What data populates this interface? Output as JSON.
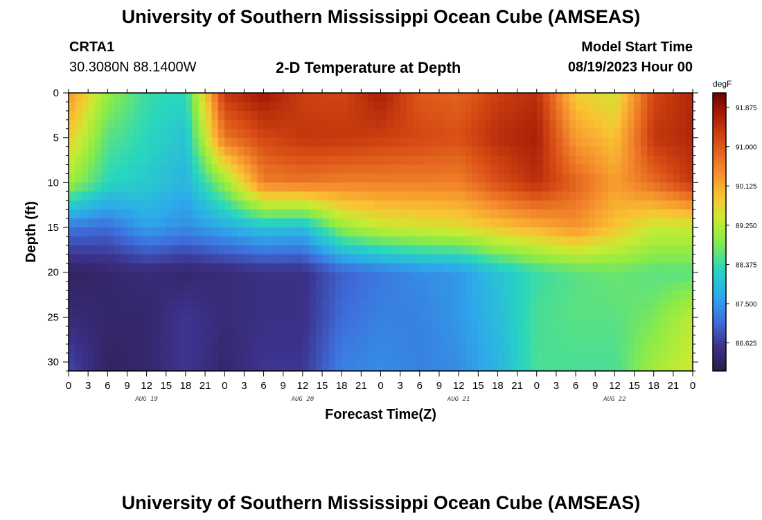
{
  "header": {
    "title": "University of Southern Mississippi Ocean Cube (AMSEAS)",
    "station": "CRTA1",
    "location": "30.3080N  88.1400W",
    "subtitle": "2-D Temperature at Depth",
    "model_label": "Model Start Time",
    "model_time": "08/19/2023 Hour 00"
  },
  "footer": {
    "title": "University of Southern Mississippi Ocean Cube (AMSEAS)"
  },
  "chart_data": {
    "type": "heatmap",
    "title": "2-D Temperature at Depth",
    "xlabel": "Forecast Time(Z)",
    "ylabel": "Depth (ft)",
    "x_unit_hours": [
      0,
      96
    ],
    "xlim": [
      0,
      96
    ],
    "ylim": [
      0,
      31
    ],
    "x_ticks": [
      0,
      3,
      6,
      9,
      12,
      15,
      18,
      21,
      24,
      27,
      30,
      33,
      36,
      39,
      42,
      45,
      48,
      51,
      54,
      57,
      60,
      63,
      66,
      69,
      72,
      75,
      78,
      81,
      84,
      87,
      90,
      93,
      96
    ],
    "x_tick_labels": [
      "0",
      "3",
      "6",
      "9",
      "12",
      "15",
      "18",
      "21",
      "0",
      "3",
      "6",
      "9",
      "12",
      "15",
      "18",
      "21",
      "0",
      "3",
      "6",
      "9",
      "12",
      "15",
      "18",
      "21",
      "0",
      "3",
      "6",
      "9",
      "12",
      "15",
      "18",
      "21",
      "0"
    ],
    "day_labels": [
      {
        "hour": 12,
        "text": "AUG 19"
      },
      {
        "hour": 36,
        "text": "AUG 20"
      },
      {
        "hour": 60,
        "text": "AUG 21"
      },
      {
        "hour": 84,
        "text": "AUG 22"
      }
    ],
    "y_ticks": [
      0,
      5,
      10,
      15,
      20,
      25,
      30
    ],
    "y_tick_labels": [
      "0",
      "5",
      "10",
      "15",
      "20",
      "25",
      "30"
    ],
    "colorbar": {
      "unit": "degF",
      "min": 86.0,
      "max": 92.2,
      "tick_values": [
        91.875,
        91.0,
        90.125,
        89.25,
        88.375,
        87.5,
        86.625
      ],
      "tick_labels": [
        "91.875",
        "91.000",
        "90.125",
        "89.250",
        "88.375",
        "87.500",
        "86.625"
      ]
    },
    "grid_hours": [
      0,
      6,
      12,
      18,
      24,
      30,
      36,
      42,
      48,
      54,
      60,
      66,
      72,
      78,
      84,
      90,
      96
    ],
    "grid_depths": [
      0,
      5,
      10,
      15,
      20,
      25,
      31
    ],
    "values": [
      [
        90.4,
        89.0,
        88.4,
        88.3,
        91.4,
        91.8,
        91.3,
        91.2,
        91.7,
        91.0,
        90.9,
        91.3,
        91.5,
        89.8,
        89.5,
        91.2,
        91.6
      ],
      [
        89.8,
        88.6,
        88.3,
        88.0,
        90.7,
        91.2,
        91.4,
        91.4,
        91.3,
        91.2,
        91.1,
        91.5,
        91.7,
        90.3,
        89.9,
        91.4,
        91.6
      ],
      [
        89.1,
        88.3,
        88.1,
        87.8,
        89.0,
        90.6,
        90.7,
        90.6,
        90.6,
        90.6,
        90.6,
        91.1,
        91.5,
        90.9,
        90.3,
        90.8,
        91.4
      ],
      [
        87.2,
        87.1,
        87.6,
        87.4,
        87.7,
        88.0,
        87.9,
        89.0,
        89.4,
        89.5,
        89.6,
        89.9,
        90.1,
        90.4,
        89.9,
        89.4,
        89.4
      ],
      [
        86.2,
        86.3,
        86.4,
        86.3,
        86.4,
        86.5,
        86.5,
        87.0,
        87.2,
        87.4,
        87.5,
        88.0,
        88.4,
        88.6,
        88.7,
        88.6,
        88.6
      ],
      [
        86.4,
        86.3,
        86.3,
        86.6,
        86.4,
        86.5,
        86.5,
        87.1,
        87.3,
        87.3,
        87.5,
        87.9,
        88.5,
        88.6,
        88.6,
        88.8,
        89.3
      ],
      [
        86.8,
        86.2,
        86.3,
        86.6,
        86.3,
        86.6,
        86.6,
        87.3,
        87.4,
        87.3,
        87.4,
        87.8,
        88.5,
        88.5,
        88.5,
        89.1,
        89.5
      ]
    ]
  }
}
